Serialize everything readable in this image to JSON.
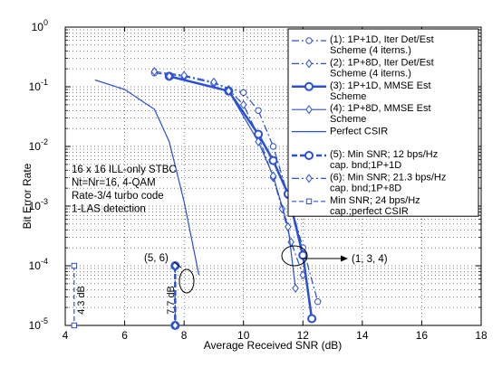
{
  "chart_data": {
    "type": "line",
    "xlabel": "Average Received SNR (dB)",
    "ylabel": "Bit Error Rate",
    "xlim": [
      4,
      18
    ],
    "ylim": [
      1e-05,
      1
    ],
    "yscale": "log",
    "grid": true,
    "legend_position": "top-right",
    "x_ticks": [
      "4",
      "6",
      "8",
      "10",
      "12",
      "14",
      "16",
      "18"
    ],
    "y_ticks": [
      {
        "base": "10",
        "exp": "0"
      },
      {
        "base": "10",
        "exp": "-1"
      },
      {
        "base": "10",
        "exp": "-2"
      },
      {
        "base": "10",
        "exp": "-3"
      },
      {
        "base": "10",
        "exp": "-4"
      },
      {
        "base": "10",
        "exp": "-5"
      }
    ],
    "series": [
      {
        "name": "(1): 1P+1D, Iter Det/Est Scheme (4 iterns.)",
        "legend_lines": [
          "(1): 1P+1D, Iter Det/Est",
          "Scheme (4 iterns.)"
        ],
        "style": "dashdot",
        "marker": "circle",
        "color": "#2b50d8",
        "x": [
          7.0,
          8.0,
          9.0,
          10.0,
          10.5,
          11.0,
          11.5,
          12.0,
          12.5
        ],
        "y": [
          0.17,
          0.15,
          0.115,
          0.08,
          0.04,
          0.01,
          0.0015,
          0.0002,
          2.5e-05
        ]
      },
      {
        "name": "(2): 1P+8D, Iter Det/Est Scheme (4 iterns.)",
        "legend_lines": [
          "(2): 1P+8D, Iter Det/Est",
          "Scheme (4 iterns.)"
        ],
        "style": "dashdot",
        "marker": "diamond",
        "color": "#2b50d8",
        "x": [
          7.0,
          8.0,
          9.0,
          9.5,
          10.0,
          10.5,
          11.0,
          11.3,
          11.6,
          12.0
        ],
        "y": [
          0.18,
          0.155,
          0.12,
          0.09,
          0.05,
          0.015,
          0.003,
          0.0009,
          0.00025,
          7e-05
        ]
      },
      {
        "name": "(3): 1P+1D, MMSE Est Scheme",
        "legend_lines": [
          "(3): 1P+1D, MMSE Est",
          "Scheme"
        ],
        "style": "solid-thick",
        "marker": "circle",
        "color": "#2b50d8",
        "x": [
          7.5,
          9.5,
          10.5,
          11.0,
          11.5,
          12.0,
          12.3
        ],
        "y": [
          0.15,
          0.085,
          0.016,
          0.0058,
          0.0016,
          0.00015,
          1.3e-05
        ]
      },
      {
        "name": "(4): 1P+8D, MMSE Est Scheme",
        "legend_lines": [
          "(4): 1P+8D, MMSE Est",
          "Scheme"
        ],
        "style": "solid",
        "marker": "diamond",
        "color": "#2b50d8",
        "x": [
          7.5,
          9.5,
          10.5,
          11.0,
          11.5,
          11.75
        ],
        "y": [
          0.15,
          0.085,
          0.012,
          0.0032,
          0.00045,
          4.2e-05
        ]
      },
      {
        "name": "Perfect CSIR",
        "legend_lines": [
          "Perfect CSIR"
        ],
        "style": "solid",
        "marker": "none",
        "color": "#2b50d8",
        "x": [
          5.0,
          6.0,
          7.0,
          7.5,
          8.0,
          8.5
        ],
        "y": [
          0.13,
          0.09,
          0.042,
          0.012,
          0.0012,
          7e-05
        ]
      },
      {
        "name": "(5): Min SNR; 12 bps/Hz cap. bnd;1P+1D",
        "legend_lines": [
          "(5): Min SNR; 12 bps/Hz",
          "cap. bnd;1P+1D"
        ],
        "style": "dashed-thick",
        "marker": "circle",
        "color": "#2b50d8",
        "x": [
          7.7,
          7.7
        ],
        "y": [
          0.0001,
          1e-05
        ]
      },
      {
        "name": "(6): Min SNR; 21.3 bps/Hz cap. bnd;1P+8D",
        "legend_lines": [
          "(6): Min SNR; 21.3 bps/Hz",
          "cap. bnd;1P+8D"
        ],
        "style": "dashdot",
        "marker": "diamond",
        "color": "#2b50d8",
        "x": [
          7.7,
          7.7
        ],
        "y": [
          0.0001,
          1e-05
        ]
      },
      {
        "name": "Min SNR; 24 bps/Hz cap.;perfect CSIR",
        "legend_lines": [
          "Min SNR; 24 bps/Hz",
          "cap.;perfect CSIR"
        ],
        "style": "dashed",
        "marker": "square",
        "color": "#2b50d8",
        "x": [
          4.3,
          4.3
        ],
        "y": [
          0.0001,
          1e-05
        ]
      }
    ],
    "annotations": {
      "system_text": [
        "16 x 16 ILL-only STBC",
        "Nt=Nr=16, 4-QAM",
        "Rate-3/4 turbo code",
        "1-LAS detection"
      ],
      "label_56": "(5, 6)",
      "label_134": "(1, 3, 4)",
      "label_43db": "4.3 dB",
      "label_77db": "7.7 dB"
    }
  }
}
